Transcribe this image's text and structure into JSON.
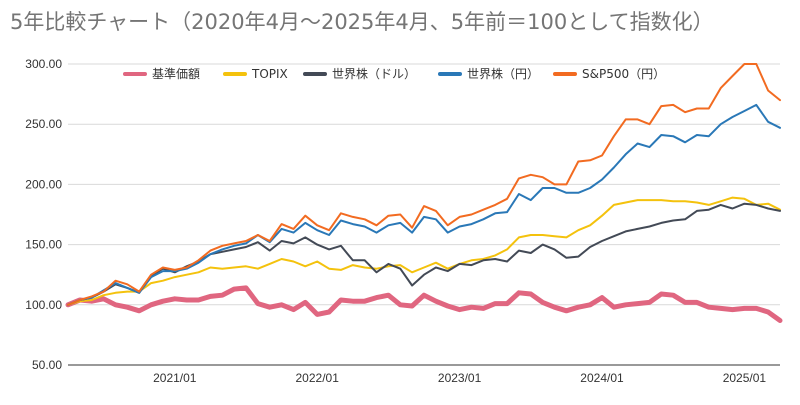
{
  "chart_data": {
    "type": "line",
    "title": "5年比較チャート（2020年4月～2025年4月、5年前＝100として指数化）",
    "xlabel": "",
    "ylabel": "",
    "ylim": [
      50,
      300
    ],
    "yticks": [
      "300.00",
      "250.00",
      "200.00",
      "150.00",
      "100.00",
      "50.00"
    ],
    "xticks": [
      {
        "label": "2021/01",
        "date": "2021-01"
      },
      {
        "label": "2022/01",
        "date": "2022-01"
      },
      {
        "label": "2023/01",
        "date": "2023-01"
      },
      {
        "label": "2024/01",
        "date": "2024-01"
      },
      {
        "label": "2025/01",
        "date": "2025-01"
      }
    ],
    "x": [
      "2020-04",
      "2020-05",
      "2020-06",
      "2020-07",
      "2020-08",
      "2020-09",
      "2020-10",
      "2020-11",
      "2020-12",
      "2021-01",
      "2021-02",
      "2021-03",
      "2021-04",
      "2021-05",
      "2021-06",
      "2021-07",
      "2021-08",
      "2021-09",
      "2021-10",
      "2021-11",
      "2021-12",
      "2022-01",
      "2022-02",
      "2022-03",
      "2022-04",
      "2022-05",
      "2022-06",
      "2022-07",
      "2022-08",
      "2022-09",
      "2022-10",
      "2022-11",
      "2022-12",
      "2023-01",
      "2023-02",
      "2023-03",
      "2023-04",
      "2023-05",
      "2023-06",
      "2023-07",
      "2023-08",
      "2023-09",
      "2023-10",
      "2023-11",
      "2023-12",
      "2024-01",
      "2024-02",
      "2024-03",
      "2024-04",
      "2024-05",
      "2024-06",
      "2024-07",
      "2024-08",
      "2024-09",
      "2024-10",
      "2024-11",
      "2024-12",
      "2025-01",
      "2025-02",
      "2025-03",
      "2025-04"
    ],
    "grid": true,
    "legend": "top",
    "series": [
      {
        "name": "基準価額",
        "color": "#e06680",
        "width": 5,
        "values": [
          100,
          104,
          103,
          105,
          100,
          98,
          95,
          100,
          103,
          105,
          104,
          104,
          107,
          108,
          113,
          114,
          101,
          98,
          100,
          96,
          102,
          92,
          94,
          104,
          103,
          103,
          106,
          108,
          100,
          99,
          108,
          103,
          99,
          96,
          98,
          97,
          101,
          101,
          110,
          109,
          102,
          98,
          95,
          98,
          100,
          106,
          98,
          100,
          101,
          102,
          109,
          108,
          102,
          102,
          98,
          97,
          96,
          97,
          97,
          94,
          87
        ]
      },
      {
        "name": "TOPIX",
        "color": "#f4c20d",
        "width": 2,
        "values": [
          100,
          103,
          104,
          108,
          110,
          111,
          111,
          118,
          120,
          123,
          125,
          127,
          131,
          130,
          131,
          132,
          130,
          134,
          138,
          136,
          132,
          136,
          130,
          129,
          133,
          131,
          130,
          132,
          133,
          127,
          131,
          135,
          130,
          134,
          137,
          138,
          141,
          146,
          156,
          158,
          158,
          157,
          156,
          162,
          166,
          174,
          183,
          185,
          187,
          187,
          187,
          186,
          186,
          185,
          183,
          186,
          189,
          188,
          183,
          184,
          179
        ]
      },
      {
        "name": "世界株（ドル）",
        "color": "#434a56",
        "width": 2,
        "values": [
          100,
          104,
          106,
          111,
          117,
          114,
          110,
          124,
          130,
          127,
          132,
          136,
          142,
          144,
          146,
          148,
          152,
          145,
          153,
          151,
          156,
          150,
          146,
          149,
          137,
          137,
          127,
          134,
          130,
          116,
          125,
          131,
          128,
          134,
          133,
          137,
          138,
          136,
          145,
          143,
          150,
          146,
          139,
          140,
          148,
          153,
          157,
          161,
          163,
          165,
          168,
          170,
          171,
          178,
          179,
          183,
          180,
          184,
          183,
          180,
          178
        ]
      },
      {
        "name": "世界株（円）",
        "color": "#2a78b7",
        "width": 2,
        "values": [
          100,
          104,
          106,
          112,
          118,
          114,
          110,
          123,
          128,
          128,
          130,
          135,
          142,
          146,
          149,
          151,
          158,
          152,
          163,
          160,
          168,
          162,
          158,
          170,
          167,
          165,
          160,
          166,
          168,
          160,
          173,
          171,
          160,
          165,
          167,
          171,
          176,
          177,
          192,
          187,
          197,
          197,
          193,
          193,
          197,
          204,
          214,
          225,
          234,
          231,
          241,
          240,
          235,
          241,
          240,
          250,
          256,
          261,
          266,
          252,
          247
        ]
      },
      {
        "name": "S&P500（円）",
        "color": "#f26b21",
        "width": 2,
        "values": [
          100,
          104,
          107,
          111,
          120,
          117,
          111,
          125,
          131,
          129,
          131,
          137,
          145,
          149,
          151,
          153,
          158,
          153,
          167,
          163,
          174,
          166,
          162,
          176,
          173,
          171,
          166,
          174,
          175,
          164,
          182,
          178,
          166,
          173,
          175,
          179,
          183,
          188,
          205,
          208,
          206,
          200,
          200,
          219,
          220,
          224,
          240,
          254,
          254,
          250,
          265,
          266,
          260,
          263,
          263,
          280,
          290,
          300,
          300,
          278,
          270
        ]
      }
    ]
  }
}
